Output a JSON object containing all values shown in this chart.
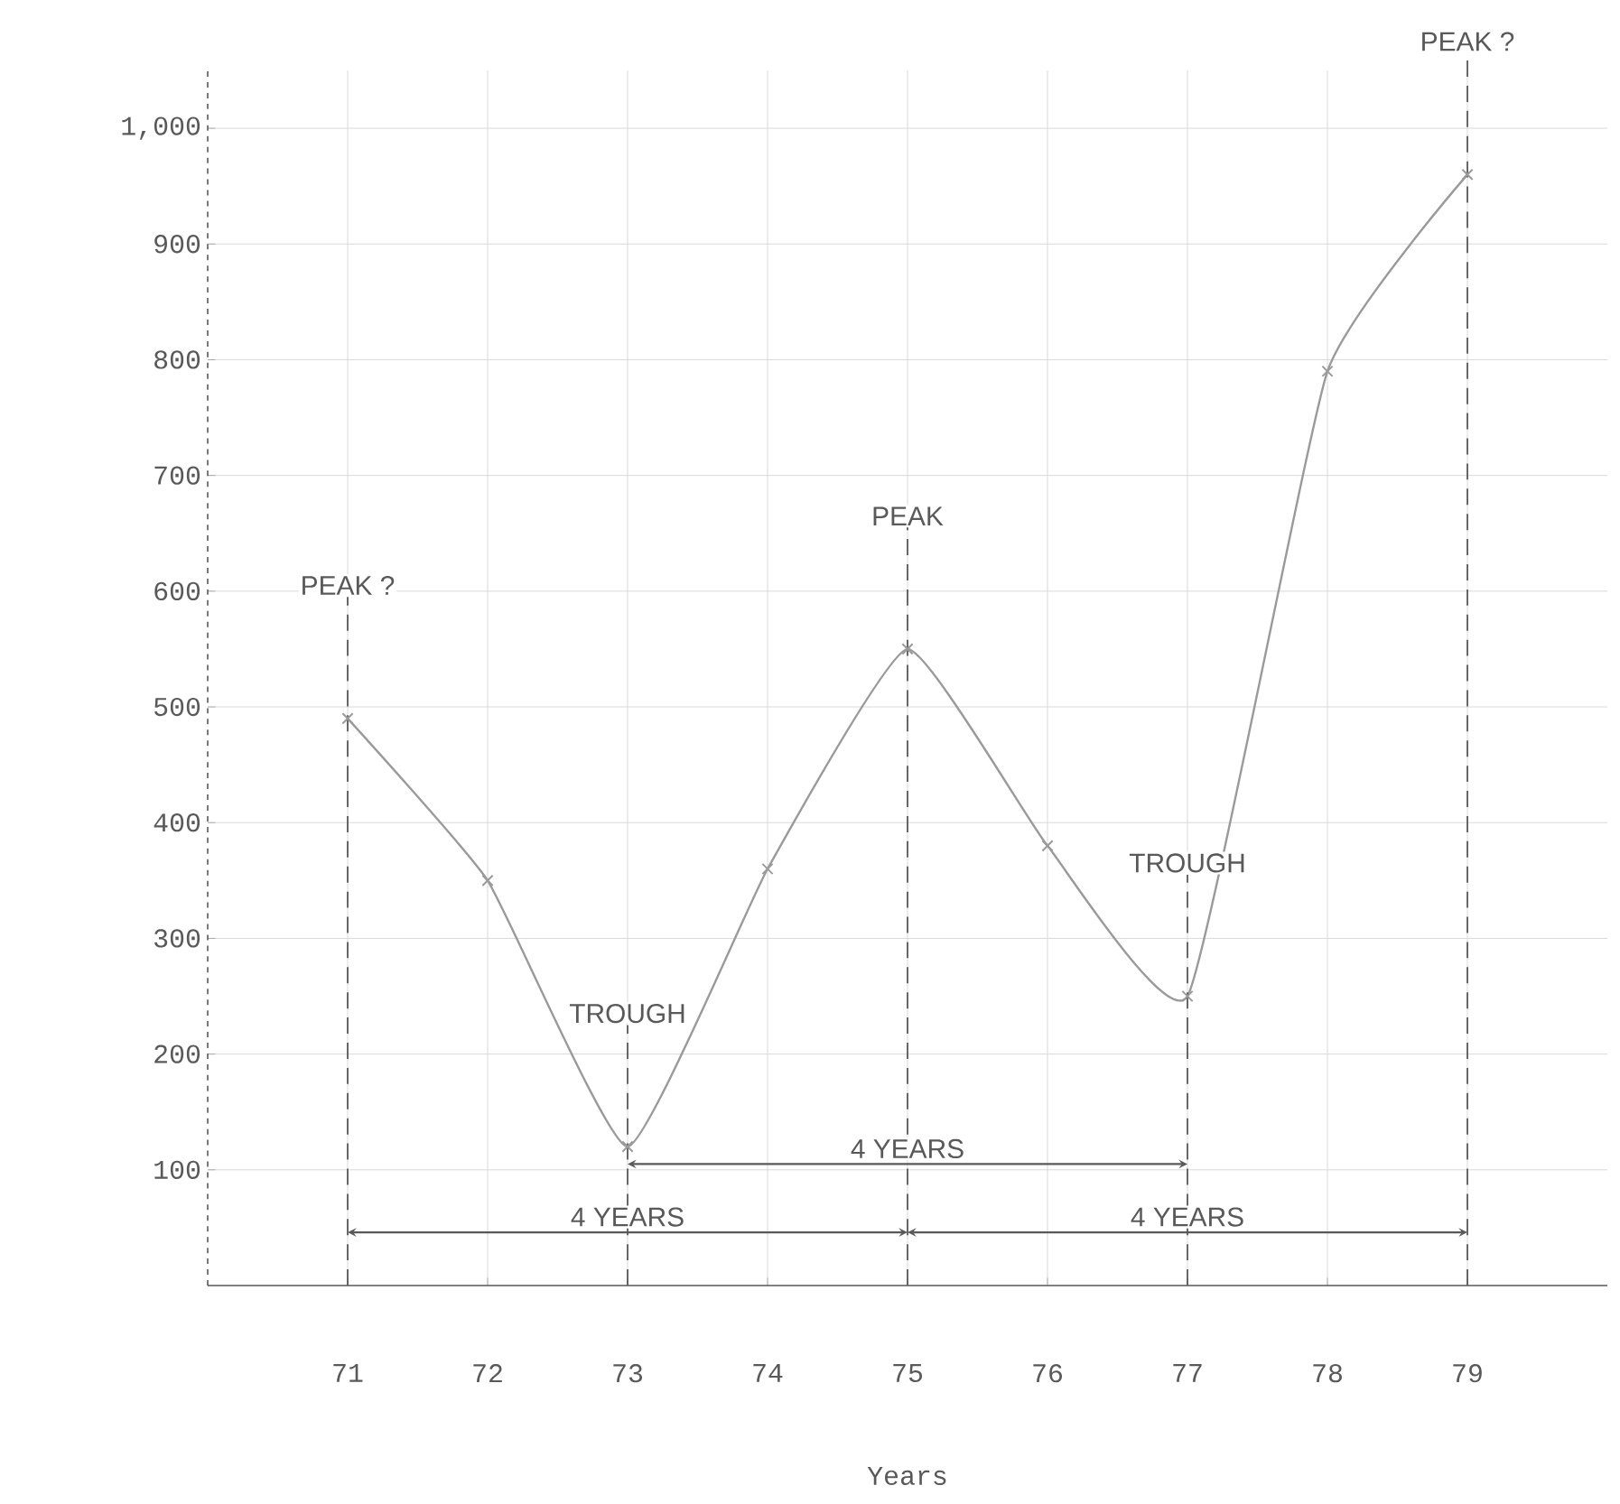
{
  "chart_data": {
    "type": "line",
    "xlabel": "Years",
    "x": [
      71,
      72,
      73,
      74,
      75,
      76,
      77,
      78,
      79
    ],
    "series": [
      {
        "color": "#9a9a9a",
        "values": [
          490,
          350,
          120,
          360,
          550,
          380,
          250,
          790,
          960
        ]
      }
    ],
    "xlim": [
      70,
      80
    ],
    "xticks": [
      71,
      72,
      73,
      74,
      75,
      76,
      77,
      78,
      79
    ],
    "ylim": [
      0,
      1050
    ],
    "yticks": [
      100,
      200,
      300,
      400,
      500,
      600,
      700,
      800,
      900,
      {
        "value": 1000,
        "label": "1,000"
      }
    ],
    "grid": true,
    "marker": "cross",
    "line_style": "solid",
    "ref_lines": [
      {
        "axis": "x",
        "value": 71,
        "label": "PEAK ?",
        "line_style": "dashed"
      },
      {
        "axis": "x",
        "value": 73,
        "label": "TROUGH",
        "line_style": "dashed"
      },
      {
        "axis": "x",
        "value": 75,
        "label": "PEAK",
        "line_style": "dashed"
      },
      {
        "axis": "x",
        "value": 77,
        "label": "TROUGH",
        "line_style": "dashed"
      },
      {
        "axis": "x",
        "value": 79,
        "label": "PEAK ?",
        "line_style": "dashed"
      }
    ],
    "annotations": [
      {
        "text": "4 YEARS",
        "x": 73,
        "y": 46
      },
      {
        "text": "4 YEARS",
        "x": 75,
        "y": 105
      },
      {
        "text": "4 YEARS",
        "x": 77,
        "y": 46
      }
    ]
  }
}
